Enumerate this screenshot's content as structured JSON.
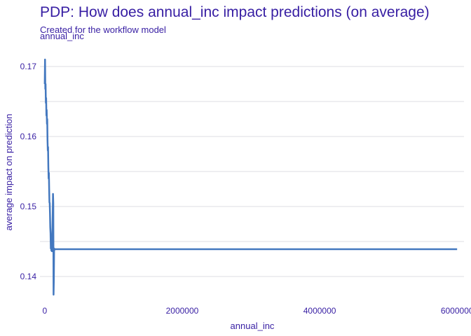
{
  "chart_data": {
    "type": "line",
    "title": "PDP: How does annual_inc impact predictions (on average)",
    "subtitle": "Created for the workflow model",
    "panel_label": "annual_inc",
    "xlabel": "annual_inc",
    "ylabel": "average impact on prediction",
    "xlim": [
      -70000,
      6100000
    ],
    "ylim": [
      0.1367,
      0.1733
    ],
    "x_ticks": [
      0,
      2000000,
      4000000,
      6000000
    ],
    "x_tick_labels": [
      "0",
      "2000000",
      "4000000",
      "6000000"
    ],
    "y_ticks": [
      0.14,
      0.15,
      0.16,
      0.17
    ],
    "y_tick_labels": [
      "0.14",
      "0.15",
      "0.16",
      "0.17"
    ],
    "series": [
      {
        "color": "#4378bf",
        "x": [
          0,
          4000,
          8000,
          12000,
          16000,
          20000,
          24000,
          28000,
          32000,
          36000,
          40000,
          44000,
          48000,
          52000,
          56000,
          60000,
          64000,
          68000,
          72000,
          76000,
          80000,
          84000,
          88000,
          92000,
          96000,
          100000,
          104000,
          108000,
          112000,
          116000,
          120000,
          124000,
          128000,
          132000,
          136000,
          140000,
          150000,
          180000,
          250000,
          500000,
          1000000,
          2000000,
          3000000,
          4000000,
          5000000,
          6000000
        ],
        "y": [
          0.1675,
          0.171,
          0.1668,
          0.1675,
          0.1648,
          0.1655,
          0.163,
          0.1638,
          0.1618,
          0.1625,
          0.1595,
          0.158,
          0.1585,
          0.1558,
          0.154,
          0.1548,
          0.1525,
          0.1506,
          0.1505,
          0.149,
          0.147,
          0.1462,
          0.144,
          0.1458,
          0.1437,
          0.1453,
          0.1436,
          0.145,
          0.1472,
          0.149,
          0.1518,
          0.1505,
          0.1374,
          0.1395,
          0.144,
          0.1438,
          0.1439,
          0.1439,
          0.1439,
          0.1439,
          0.1439,
          0.1439,
          0.1439,
          0.1439,
          0.1439,
          0.1439
        ]
      }
    ]
  }
}
